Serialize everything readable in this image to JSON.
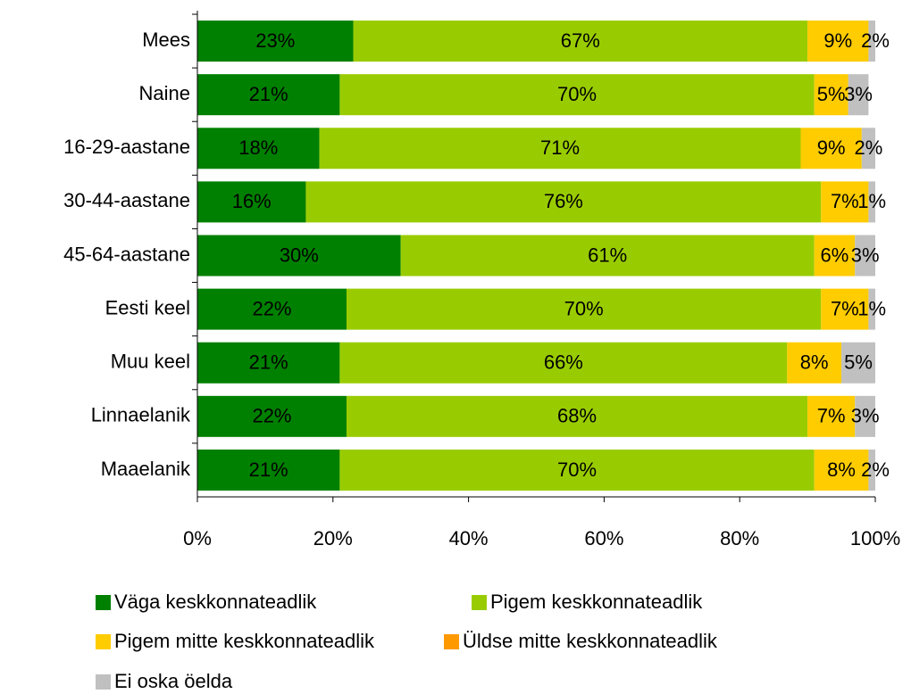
{
  "chart_data": {
    "type": "bar",
    "orientation": "horizontal",
    "stacked": true,
    "categories": [
      "Mees",
      "Naine",
      "16-29-aastane",
      "30-44-aastane",
      "45-64-aastane",
      "Eesti keel",
      "Muu keel",
      "Linnaelanik",
      "Maaelanik"
    ],
    "series": [
      {
        "name": "Väga keskkonnateadlik",
        "color": "#008000",
        "values": [
          23,
          21,
          18,
          16,
          30,
          22,
          21,
          22,
          21
        ],
        "value_labels": [
          "23%",
          "21%",
          "18%",
          "16%",
          "30%",
          "22%",
          "21%",
          "22%",
          "21%"
        ]
      },
      {
        "name": "Pigem keskkonnateadlik",
        "color": "#99cc00",
        "values": [
          67,
          70,
          71,
          76,
          61,
          70,
          66,
          68,
          70
        ],
        "value_labels": [
          "67%",
          "70%",
          "71%",
          "76%",
          "61%",
          "70%",
          "66%",
          "68%",
          "70%"
        ]
      },
      {
        "name": "Pigem mitte keskkonnateadlik",
        "color": "#ffcc00",
        "values": [
          9,
          5,
          9,
          7,
          6,
          7,
          8,
          7,
          8
        ],
        "value_labels": [
          "9%",
          "5%",
          "9%",
          "7%",
          "6%",
          "7%",
          "8%",
          "7%",
          "8%"
        ]
      },
      {
        "name": "Üldse mitte keskkonnateadlik",
        "color": "#ff9900",
        "values": [
          0,
          0,
          0,
          0,
          0,
          0,
          0,
          0,
          0
        ]
      },
      {
        "name": "Ei oska öelda",
        "color": "#c0c0c0",
        "values": [
          2,
          3,
          2,
          1,
          3,
          1,
          5,
          3,
          2
        ],
        "value_labels": [
          "2%",
          "3%",
          "2%",
          "1%",
          "3%",
          "1%",
          "5%",
          "3%",
          "2%"
        ]
      }
    ],
    "xlim": [
      0,
      100
    ],
    "xticks": [
      {
        "value": 0,
        "label": "0%"
      },
      {
        "value": 20,
        "label": "20%"
      },
      {
        "value": 40,
        "label": "40%"
      },
      {
        "value": 60,
        "label": "60%"
      },
      {
        "value": 80,
        "label": "80%"
      },
      {
        "value": 100,
        "label": "100%"
      }
    ],
    "legend": "bottom"
  }
}
